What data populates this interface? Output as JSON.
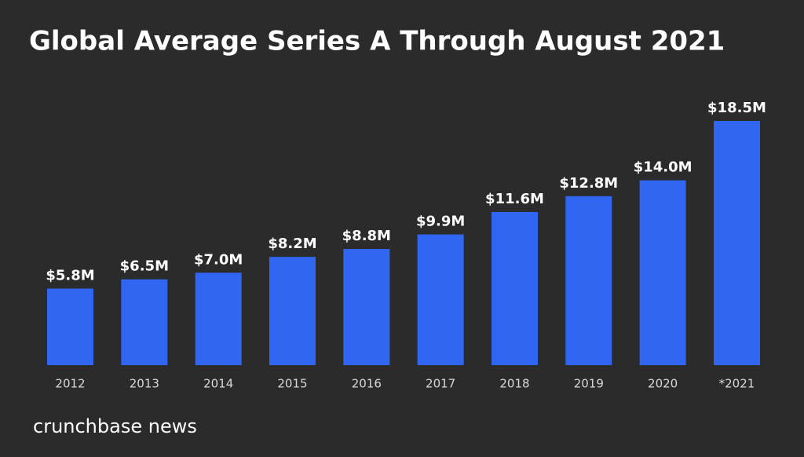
{
  "chart_data": {
    "type": "bar",
    "title": "Global Average Series A Through August 2021",
    "categories": [
      "2012",
      "2013",
      "2014",
      "2015",
      "2016",
      "2017",
      "2018",
      "2019",
      "2020",
      "*2021"
    ],
    "values": [
      5.8,
      6.5,
      7.0,
      8.2,
      8.8,
      9.9,
      11.6,
      12.8,
      14.0,
      18.5
    ],
    "value_labels": [
      "$5.8M",
      "$6.5M",
      "$7.0M",
      "$8.2M",
      "$8.8M",
      "$9.9M",
      "$11.6M",
      "$12.8M",
      "$14.0M",
      "$18.5M"
    ],
    "color": "#3066f2"
  },
  "footer": {
    "brand": "crunchbase news"
  }
}
